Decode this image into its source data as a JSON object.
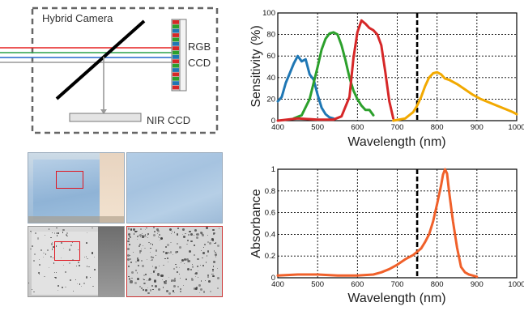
{
  "diagram": {
    "camera_label": "Hybrid Camera",
    "rgb_ccd_label_1": "RGB",
    "rgb_ccd_label_2": "CCD",
    "nir_ccd_label": "NIR CCD",
    "beam_colors": [
      "#e62020",
      "#2aa04a",
      "#2266cc"
    ],
    "prism_colors": [
      "#d62728",
      "#2ca02c",
      "#1f77b4",
      "#d62728",
      "#2ca02c",
      "#1f77b4"
    ]
  },
  "chart_data": [
    {
      "type": "line",
      "title": "",
      "xlabel": "Wavelength (nm)",
      "ylabel": "Sensitivity (%)",
      "xlim": [
        400,
        1000
      ],
      "ylim": [
        0,
        100
      ],
      "xticks": [
        400,
        500,
        600,
        700,
        800,
        900,
        1000
      ],
      "yticks": [
        0,
        20,
        40,
        60,
        80,
        100
      ],
      "grid": true,
      "vline": 750,
      "series": [
        {
          "color": "#1f77b4",
          "x": [
            400,
            410,
            420,
            430,
            440,
            450,
            460,
            470,
            480,
            490,
            500,
            510,
            520,
            530,
            540
          ],
          "y": [
            18,
            22,
            35,
            44,
            53,
            60,
            55,
            57,
            43,
            38,
            24,
            12,
            6,
            3,
            2
          ]
        },
        {
          "color": "#2ca02c",
          "x": [
            440,
            460,
            480,
            500,
            510,
            520,
            530,
            540,
            550,
            560,
            570,
            580,
            590,
            600,
            610,
            620,
            630,
            640
          ],
          "y": [
            2,
            5,
            20,
            50,
            66,
            76,
            81,
            82,
            80,
            70,
            56,
            40,
            28,
            20,
            14,
            10,
            10,
            5
          ]
        },
        {
          "color": "#d62728",
          "x": [
            400,
            450,
            500,
            540,
            560,
            580,
            590,
            600,
            610,
            620,
            630,
            640,
            650,
            660,
            670,
            680,
            690
          ],
          "y": [
            0,
            2,
            1,
            1,
            4,
            22,
            58,
            82,
            93,
            90,
            86,
            84,
            80,
            70,
            45,
            18,
            2
          ]
        },
        {
          "color": "#f2a900",
          "x": [
            690,
            720,
            740,
            750,
            760,
            770,
            780,
            790,
            800,
            810,
            820,
            830,
            850,
            870,
            890,
            910,
            930,
            950,
            970,
            990,
            1000
          ],
          "y": [
            0,
            2,
            8,
            14,
            22,
            32,
            40,
            44,
            45,
            43,
            39,
            38,
            34,
            29,
            24,
            20,
            17,
            14,
            11,
            8,
            6
          ]
        }
      ]
    },
    {
      "type": "line",
      "title": "",
      "xlabel": "Wavelength (nm)",
      "ylabel": "Absorbance",
      "xlim": [
        400,
        1000
      ],
      "ylim": [
        0,
        1
      ],
      "xticks": [
        400,
        500,
        600,
        700,
        800,
        900,
        1000
      ],
      "yticks": [
        0,
        0.2,
        0.4,
        0.6,
        0.8,
        1
      ],
      "grid": true,
      "vline": 750,
      "series": [
        {
          "color": "#f0602a",
          "x": [
            400,
            450,
            500,
            550,
            600,
            640,
            660,
            680,
            700,
            720,
            740,
            760,
            770,
            780,
            790,
            800,
            810,
            815,
            820,
            825,
            830,
            840,
            850,
            860,
            870,
            880,
            890,
            900
          ],
          "y": [
            0.02,
            0.03,
            0.03,
            0.02,
            0.02,
            0.03,
            0.05,
            0.08,
            0.12,
            0.17,
            0.21,
            0.27,
            0.33,
            0.4,
            0.52,
            0.68,
            0.85,
            0.95,
            1.0,
            0.96,
            0.8,
            0.52,
            0.28,
            0.1,
            0.05,
            0.03,
            0.02,
            0.01
          ]
        }
      ]
    }
  ]
}
